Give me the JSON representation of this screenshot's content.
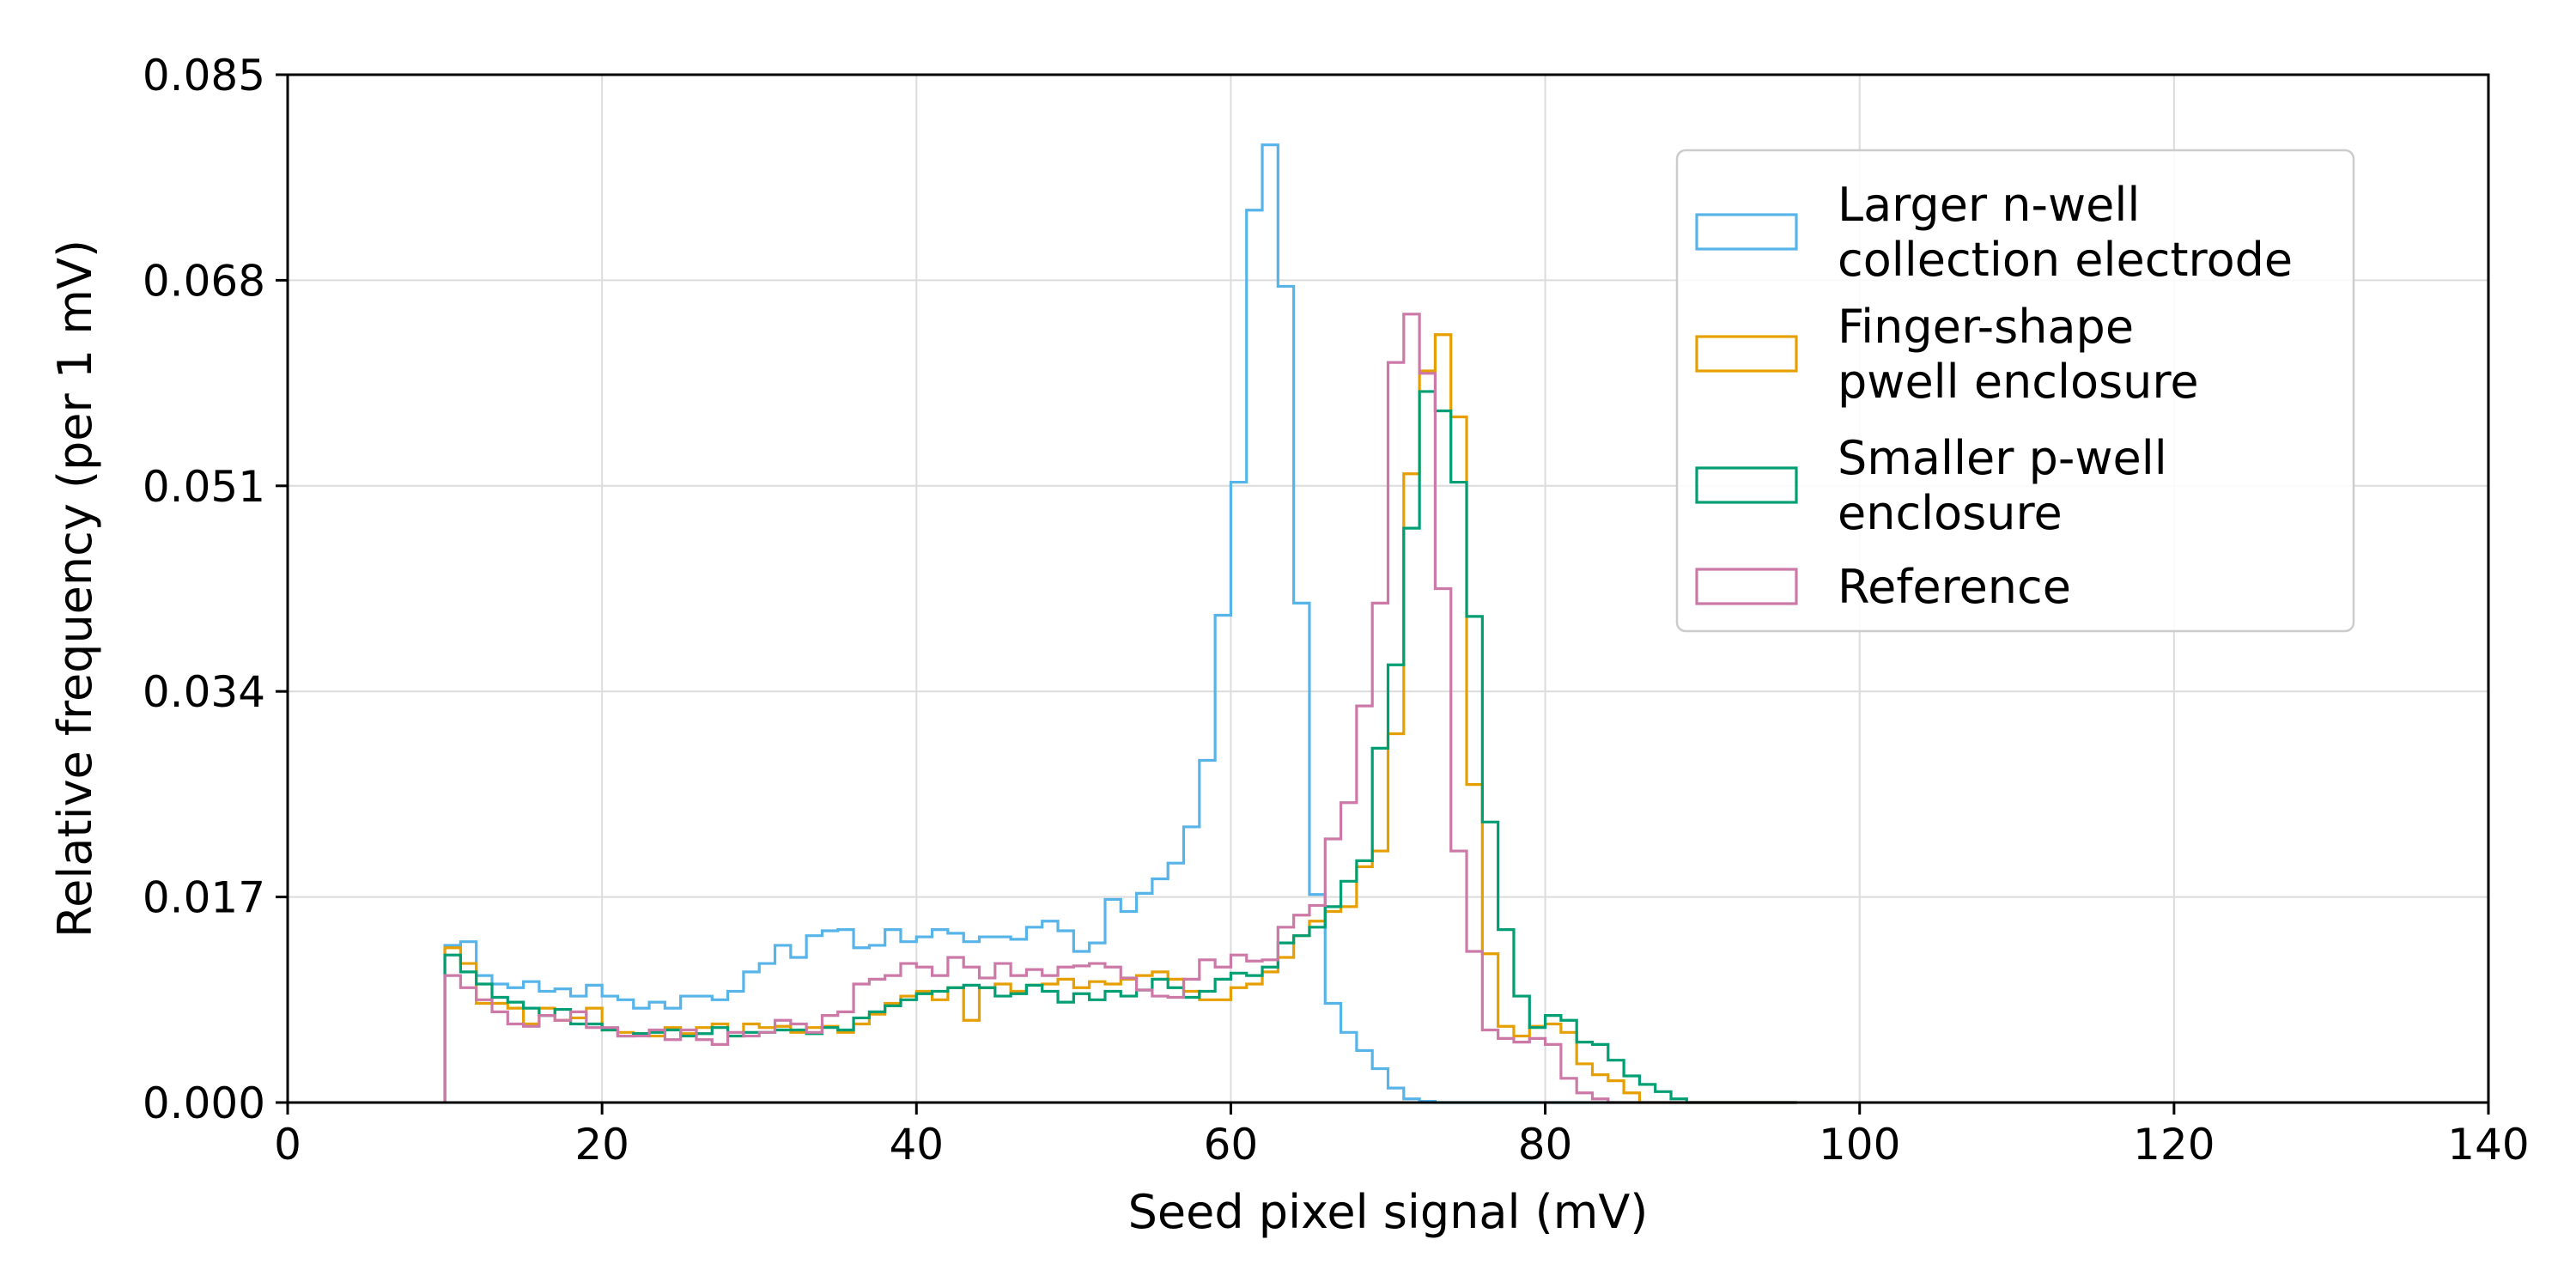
{
  "chart_data": {
    "type": "step-histogram",
    "xlabel": "Seed pixel signal (mV)",
    "ylabel": "Relative frequency (per 1 mV)",
    "xlim": [
      0,
      140
    ],
    "ylim": [
      0,
      0.085
    ],
    "xticks": [
      0,
      20,
      40,
      60,
      80,
      100,
      120,
      140
    ],
    "xtick_labels": [
      "0",
      "20",
      "40",
      "60",
      "80",
      "100",
      "120",
      "140"
    ],
    "yticks": [
      0,
      0.017,
      0.034,
      0.051,
      0.068,
      0.085
    ],
    "ytick_labels": [
      "0.000",
      "0.017",
      "0.034",
      "0.051",
      "0.068",
      "0.085"
    ],
    "grid": true,
    "legend_position": "top-right",
    "bin_start": 10,
    "bin_width": 1,
    "series": [
      {
        "name": "Larger n-well collection electrode",
        "legend_lines": [
          "Larger n-well",
          "collection electrode"
        ],
        "color": "#56B4E9",
        "values": [
          0.013,
          0.0133,
          0.0105,
          0.0098,
          0.0095,
          0.01,
          0.0092,
          0.0094,
          0.0088,
          0.0097,
          0.0088,
          0.0085,
          0.0078,
          0.0083,
          0.0078,
          0.0088,
          0.0088,
          0.0085,
          0.0092,
          0.0108,
          0.0115,
          0.013,
          0.012,
          0.0138,
          0.0142,
          0.0143,
          0.0128,
          0.013,
          0.0143,
          0.0133,
          0.0137,
          0.0143,
          0.014,
          0.0133,
          0.0137,
          0.0137,
          0.0135,
          0.0145,
          0.015,
          0.0142,
          0.0125,
          0.0132,
          0.0168,
          0.0158,
          0.0173,
          0.0185,
          0.0198,
          0.0228,
          0.0283,
          0.0403,
          0.0513,
          0.0738,
          0.0792,
          0.0675,
          0.0413,
          0.0172,
          0.0082,
          0.0058,
          0.0043,
          0.0028,
          0.0012,
          0.0003,
          0.0001,
          0,
          0,
          0,
          0,
          0,
          0,
          0,
          0,
          0,
          0,
          0,
          0,
          0,
          0,
          0,
          0,
          0,
          0,
          0,
          0,
          0,
          0,
          0
        ]
      },
      {
        "name": "Finger-shape pwell enclosure",
        "legend_lines": [
          "Finger-shape",
          "pwell enclosure"
        ],
        "color": "#E69F00",
        "values": [
          0.0128,
          0.0115,
          0.0082,
          0.0082,
          0.0078,
          0.0065,
          0.0078,
          0.0068,
          0.007,
          0.0078,
          0.006,
          0.0058,
          0.0057,
          0.0055,
          0.0062,
          0.0057,
          0.0062,
          0.0065,
          0.0055,
          0.0065,
          0.0062,
          0.0063,
          0.0058,
          0.0062,
          0.0063,
          0.0058,
          0.0065,
          0.0073,
          0.0082,
          0.0088,
          0.0092,
          0.0085,
          0.0095,
          0.0068,
          0.0095,
          0.0098,
          0.0092,
          0.0097,
          0.0098,
          0.0102,
          0.0095,
          0.01,
          0.0098,
          0.0102,
          0.0105,
          0.0108,
          0.0102,
          0.0092,
          0.0085,
          0.0085,
          0.0095,
          0.0098,
          0.0108,
          0.012,
          0.0138,
          0.015,
          0.0158,
          0.0162,
          0.0195,
          0.0208,
          0.0305,
          0.052,
          0.0605,
          0.0635,
          0.0567,
          0.0263,
          0.0123,
          0.0063,
          0.0055,
          0.0063,
          0.0065,
          0.0058,
          0.0032,
          0.0023,
          0.0018,
          0.0008,
          0,
          0,
          0,
          0,
          0,
          0,
          0,
          0,
          0,
          0
        ]
      },
      {
        "name": "Smaller p-well enclosure",
        "legend_lines": [
          "Smaller p-well",
          "enclosure"
        ],
        "color": "#009E73",
        "values": [
          0.0122,
          0.0108,
          0.0098,
          0.0087,
          0.0083,
          0.0078,
          0.0072,
          0.0077,
          0.0065,
          0.0065,
          0.006,
          0.0055,
          0.0057,
          0.0058,
          0.006,
          0.0055,
          0.0057,
          0.0062,
          0.0055,
          0.0058,
          0.0058,
          0.006,
          0.006,
          0.0057,
          0.0062,
          0.006,
          0.007,
          0.0075,
          0.008,
          0.0085,
          0.009,
          0.0092,
          0.0095,
          0.0097,
          0.0095,
          0.0088,
          0.009,
          0.0097,
          0.0092,
          0.0083,
          0.009,
          0.0085,
          0.0092,
          0.0088,
          0.0093,
          0.0102,
          0.0095,
          0.0087,
          0.0092,
          0.0102,
          0.0107,
          0.0105,
          0.0112,
          0.0132,
          0.0138,
          0.0145,
          0.0162,
          0.0183,
          0.02,
          0.0293,
          0.0362,
          0.0475,
          0.0588,
          0.0572,
          0.0513,
          0.0402,
          0.0232,
          0.0143,
          0.0088,
          0.0062,
          0.0072,
          0.0068,
          0.005,
          0.0048,
          0.0035,
          0.0022,
          0.0015,
          0.0009,
          0.0003,
          0,
          0,
          0,
          0,
          0,
          0,
          0
        ]
      },
      {
        "name": "Reference",
        "legend_lines": [
          "Reference"
        ],
        "color": "#CC79A7",
        "values": [
          0.0105,
          0.0095,
          0.0085,
          0.0075,
          0.0065,
          0.0063,
          0.0072,
          0.0068,
          0.0075,
          0.0062,
          0.0062,
          0.0055,
          0.0055,
          0.006,
          0.0052,
          0.006,
          0.0052,
          0.0048,
          0.0058,
          0.0055,
          0.0058,
          0.0068,
          0.0065,
          0.0058,
          0.0072,
          0.0075,
          0.0098,
          0.0102,
          0.0105,
          0.0115,
          0.0112,
          0.0105,
          0.012,
          0.0112,
          0.0103,
          0.0115,
          0.0105,
          0.011,
          0.0105,
          0.0112,
          0.0113,
          0.0115,
          0.0112,
          0.0103,
          0.0093,
          0.0088,
          0.0087,
          0.0102,
          0.0118,
          0.0112,
          0.0122,
          0.0117,
          0.0118,
          0.0145,
          0.0155,
          0.0163,
          0.0218,
          0.0248,
          0.0328,
          0.0413,
          0.0612,
          0.0652,
          0.0603,
          0.0425,
          0.0208,
          0.0125,
          0.006,
          0.0053,
          0.005,
          0.0053,
          0.0048,
          0.002,
          0.0008,
          0.0003,
          0,
          0,
          0,
          0,
          0,
          0,
          0,
          0,
          0,
          0,
          0,
          0
        ]
      }
    ]
  }
}
